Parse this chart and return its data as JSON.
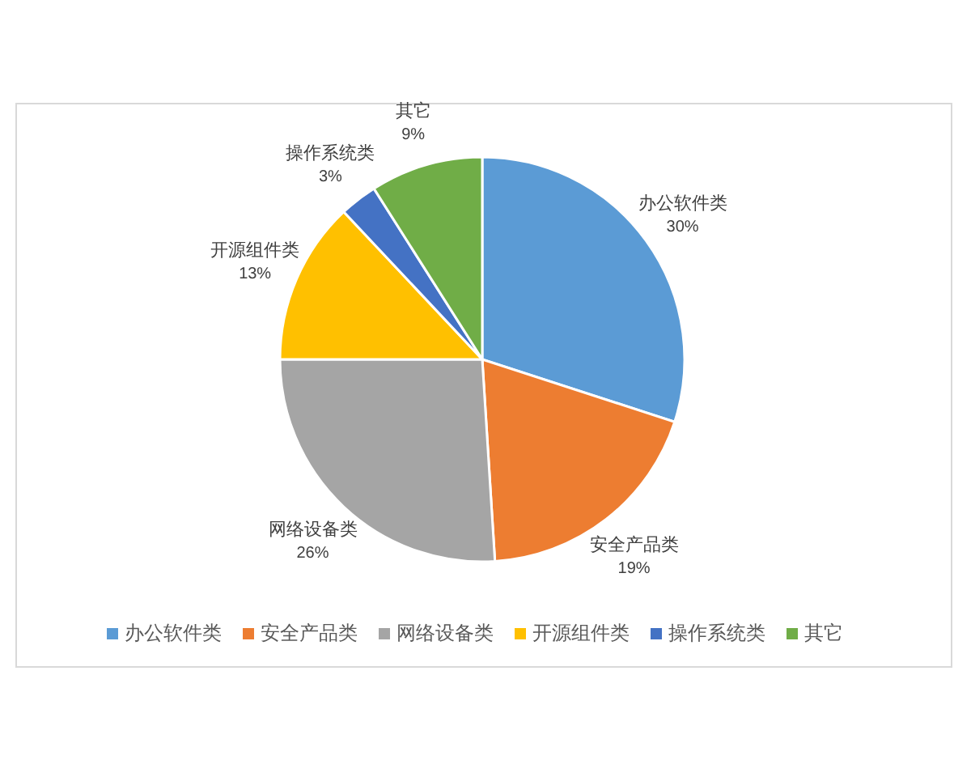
{
  "chart_data": {
    "type": "pie",
    "categories": [
      "办公软件类",
      "安全产品类",
      "网络设备类",
      "开源组件类",
      "操作系统类",
      "其它"
    ],
    "values": [
      30,
      19,
      26,
      13,
      3,
      9
    ],
    "colors": [
      "#5b9bd5",
      "#ed7d31",
      "#a5a5a5",
      "#ffc000",
      "#4472c4",
      "#70ad47"
    ],
    "value_labels": [
      "30%",
      "19%",
      "26%",
      "13%",
      "3%",
      "9%"
    ],
    "legend": "bottom"
  }
}
